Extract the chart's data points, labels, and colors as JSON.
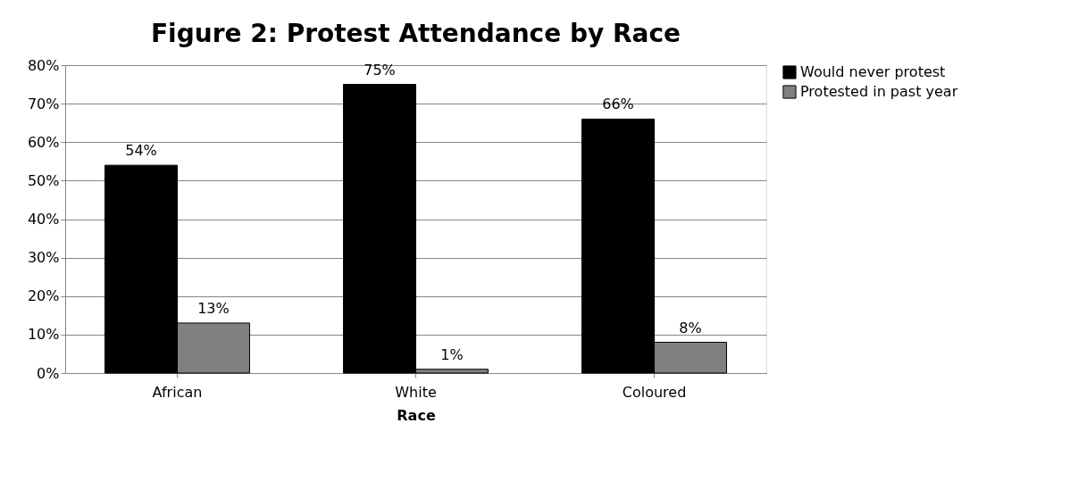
{
  "chart_data": {
    "type": "bar",
    "title": "Figure 2: Protest Attendance by Race",
    "xlabel": "Race",
    "categories": [
      "African",
      "White",
      "Coloured"
    ],
    "series": [
      {
        "name": "Would never protest",
        "color": "#000000",
        "values": [
          54,
          75,
          66
        ],
        "value_labels": [
          "54%",
          "75%",
          "66%"
        ]
      },
      {
        "name": "Protested in past year",
        "color": "#808080",
        "values": [
          13,
          1,
          8
        ],
        "value_labels": [
          "13%",
          "1%",
          "8%"
        ]
      }
    ],
    "ylim": [
      0,
      80
    ],
    "yticks": [
      {
        "value": 0,
        "label": "0%"
      },
      {
        "value": 10,
        "label": "10%"
      },
      {
        "value": 20,
        "label": "20%"
      },
      {
        "value": 30,
        "label": "30%"
      },
      {
        "value": 40,
        "label": "40%"
      },
      {
        "value": 50,
        "label": "50%"
      },
      {
        "value": 60,
        "label": "60%"
      },
      {
        "value": 70,
        "label": "70%"
      },
      {
        "value": 80,
        "label": "80%"
      }
    ],
    "grid": "y",
    "legend": "right"
  }
}
